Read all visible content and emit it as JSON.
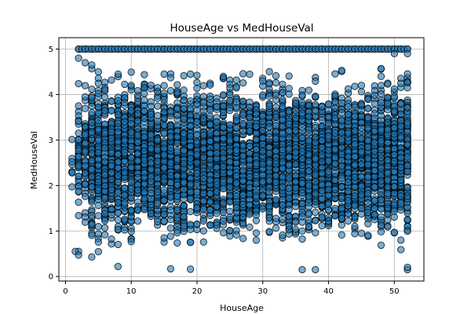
{
  "chart_data": {
    "type": "scatter",
    "title": "HouseAge vs MedHouseVal",
    "xlabel": "HouseAge",
    "ylabel": "MedHouseVal",
    "xlim": [
      -1,
      54.5
    ],
    "ylim": [
      -0.1,
      5.25
    ],
    "xticks": [
      0,
      10,
      20,
      30,
      40,
      50
    ],
    "yticks": [
      0,
      1,
      2,
      3,
      4,
      5
    ],
    "grid": true,
    "marker_color": "#1f77b4",
    "marker_edge": "#000000",
    "marker_alpha": 0.6,
    "x_values": [
      1,
      2,
      3,
      4,
      5,
      6,
      7,
      8,
      9,
      10,
      11,
      12,
      13,
      14,
      15,
      16,
      17,
      18,
      19,
      20,
      21,
      22,
      23,
      24,
      25,
      26,
      27,
      28,
      29,
      30,
      31,
      32,
      33,
      34,
      35,
      36,
      37,
      38,
      39,
      40,
      41,
      42,
      43,
      44,
      45,
      46,
      47,
      48,
      49,
      50,
      51,
      52
    ],
    "capped_y": 5.0,
    "low_points": [
      [
        2,
        0.55
      ],
      [
        1.5,
        0.55
      ],
      [
        2,
        0.47
      ],
      [
        4,
        0.43
      ],
      [
        8,
        0.22
      ],
      [
        16,
        0.17
      ],
      [
        19,
        0.16
      ],
      [
        36,
        0.15
      ],
      [
        38,
        0.15
      ],
      [
        52,
        0.15
      ],
      [
        52,
        0.2
      ]
    ],
    "high_points": [
      [
        2,
        4.8
      ],
      [
        3,
        4.7
      ],
      [
        4,
        4.65
      ],
      [
        5,
        4.5
      ],
      [
        8,
        4.45
      ],
      [
        10,
        4.2
      ],
      [
        15,
        4.45
      ],
      [
        19,
        4.45
      ],
      [
        24,
        4.4
      ],
      [
        30,
        4.3
      ],
      [
        45,
        4.2
      ],
      [
        48,
        4.4
      ],
      [
        50,
        4.9
      ],
      [
        52,
        4.9
      ]
    ]
  }
}
